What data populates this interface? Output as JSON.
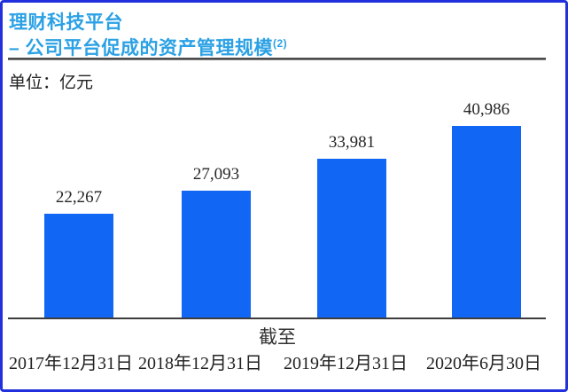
{
  "frame": {
    "border_color": "#2130DC",
    "background": "#ffffff"
  },
  "header": {
    "title": "理财科技平台",
    "subtitle": "– 公司平台促成的资产管理规模",
    "subtitle_footnote": "(2)",
    "title_color": "#2BA1E4"
  },
  "unit_label": "单位：亿元",
  "chart_data": {
    "type": "bar",
    "title": "理财科技平台 – 公司平台促成的资产管理规模(2)",
    "unit": "亿元",
    "categories": [
      "2017年12月31日",
      "2018年12月31日",
      "2019年12月31日",
      "2020年6月30日"
    ],
    "values": [
      22267,
      27093,
      33981,
      40986
    ],
    "value_labels": [
      "22,267",
      "27,093",
      "33,981",
      "40,986"
    ],
    "xlabel": "截至",
    "ylabel": "亿元",
    "ylim": [
      0,
      41000
    ],
    "bar_color": "#1266F4",
    "grid": false,
    "legend": false,
    "value_labels_position": "above-bars"
  }
}
